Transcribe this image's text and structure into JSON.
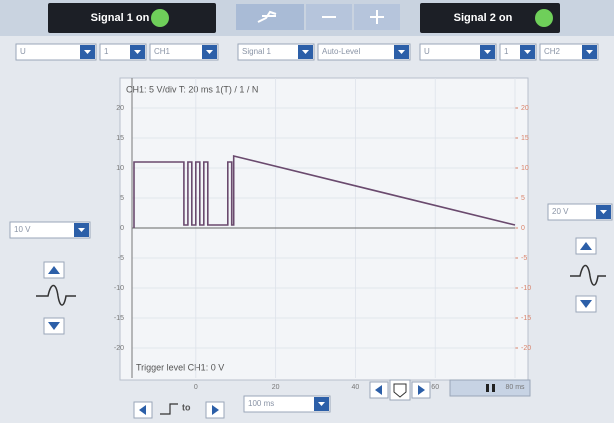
{
  "header": {
    "signal1": "Signal 1 on",
    "signal2": "Signal 2 on"
  },
  "dropdowns": [
    "U",
    "1",
    "CH1",
    "Signal 1",
    "Auto-Level",
    "U",
    "1",
    "CH2"
  ],
  "left_scale": "10 V",
  "right_scale": "20 V",
  "timebase": "100 ms",
  "trigger_button": "to",
  "plot": {
    "info": "CH1: 5 V/div  T: 20 ms  1(T) / 1 / N",
    "trigger_text": "Trigger level CH1: 0 V",
    "ylim": [
      -25,
      25
    ],
    "yticks": [
      20,
      15,
      10,
      5,
      0,
      -5,
      -10,
      -15,
      -20
    ],
    "y2ticks": [
      20,
      15,
      10,
      5,
      0,
      -5,
      -10,
      -15,
      -20
    ],
    "xlim": [
      -16,
      80
    ],
    "xticks": [
      0,
      20,
      40,
      60,
      {
        "value": 80,
        "label": "80 ms"
      }
    ],
    "trace": {
      "x": [
        -15.5,
        -15.5,
        -3,
        -3,
        -2,
        -2,
        -1,
        -1,
        0,
        0,
        1,
        1,
        2,
        2,
        3,
        3,
        8,
        8,
        9,
        9,
        9.5,
        9.5,
        80
      ],
      "y": [
        0,
        11,
        11,
        0.5,
        0.5,
        11,
        11,
        0.5,
        0.5,
        11,
        11,
        0.5,
        0.5,
        11,
        11,
        0.5,
        0.5,
        11,
        11,
        0.5,
        0.5,
        12,
        0.5
      ]
    }
  }
}
